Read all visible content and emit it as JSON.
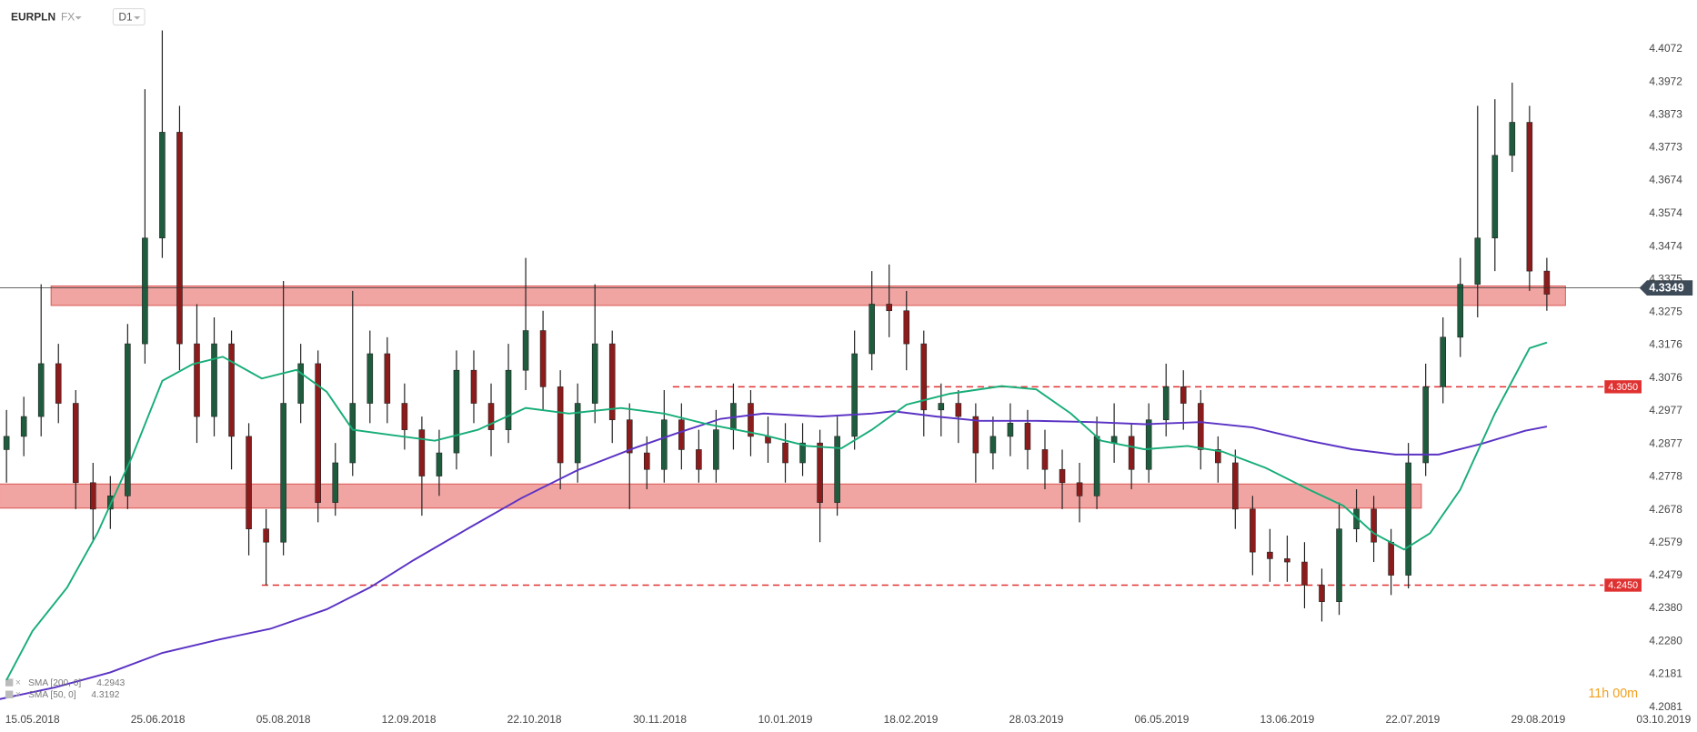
{
  "header": {
    "symbol": "EURPLN",
    "market": "FX",
    "interval": "D1",
    "countdown": "11h 00m"
  },
  "chart_data": {
    "type": "candlestick",
    "xlim": [
      -7.5,
      371
    ],
    "xticks": [
      {
        "value": 0,
        "label": "15.05.2018"
      },
      {
        "value": 29,
        "label": "25.06.2018"
      },
      {
        "value": 58,
        "label": "05.08.2018"
      },
      {
        "value": 87,
        "label": "12.09.2018"
      },
      {
        "value": 116,
        "label": "22.10.2018"
      },
      {
        "value": 145,
        "label": "30.11.2018"
      },
      {
        "value": 174,
        "label": "10.01.2019"
      },
      {
        "value": 203,
        "label": "18.02.2019"
      },
      {
        "value": 232,
        "label": "28.03.2019"
      },
      {
        "value": 261,
        "label": "06.05.2019"
      },
      {
        "value": 290,
        "label": "13.06.2019"
      },
      {
        "value": 319,
        "label": "22.07.2019"
      },
      {
        "value": 348,
        "label": "29.08.2019"
      },
      {
        "value": 377,
        "label": "03.10.2019"
      }
    ],
    "ylim": [
      4.2065,
      4.422
    ],
    "yticks": [
      4.4072,
      4.3972,
      4.3873,
      4.3773,
      4.3674,
      4.3574,
      4.3474,
      4.3375,
      4.3275,
      4.3176,
      4.3076,
      4.2977,
      4.2877,
      4.2778,
      4.2678,
      4.2579,
      4.2479,
      {
        "value": 4.238,
        "label": "4.2380"
      },
      {
        "value": 4.228,
        "label": "4.2280"
      },
      4.2181,
      4.2081
    ],
    "up_color": "#1f5c3e",
    "down_color": "#8c1c1c",
    "x": [
      -6,
      -2,
      2,
      6,
      10,
      14,
      18,
      22,
      26,
      30,
      34,
      38,
      42,
      46,
      50,
      54,
      58,
      62,
      66,
      70,
      74,
      78,
      82,
      86,
      90,
      94,
      98,
      102,
      106,
      110,
      114,
      118,
      122,
      126,
      130,
      134,
      138,
      142,
      146,
      150,
      154,
      158,
      162,
      166,
      170,
      174,
      178,
      182,
      186,
      190,
      194,
      198,
      202,
      206,
      210,
      214,
      218,
      222,
      226,
      230,
      234,
      238,
      242,
      246,
      250,
      254,
      258,
      262,
      266,
      270,
      274,
      278,
      282,
      286,
      290,
      294,
      298,
      302,
      306,
      310,
      314,
      318,
      322,
      326,
      330,
      334,
      338,
      342,
      346,
      350
    ],
    "open": [
      4.286,
      4.29,
      4.296,
      4.312,
      4.3,
      4.276,
      4.268,
      4.272,
      4.318,
      4.35,
      4.382,
      4.318,
      4.296,
      4.318,
      4.29,
      4.262,
      4.258,
      4.3,
      4.312,
      4.27,
      4.282,
      4.3,
      4.315,
      4.3,
      4.292,
      4.278,
      4.285,
      4.31,
      4.3,
      4.292,
      4.31,
      4.322,
      4.305,
      4.282,
      4.3,
      4.318,
      4.295,
      4.285,
      4.28,
      4.295,
      4.286,
      4.28,
      4.292,
      4.3,
      4.29,
      4.288,
      4.282,
      4.288,
      4.27,
      4.29,
      4.315,
      4.33,
      4.328,
      4.318,
      4.298,
      4.3,
      4.296,
      4.285,
      4.29,
      4.294,
      4.286,
      4.28,
      4.276,
      4.272,
      4.288,
      4.29,
      4.28,
      4.295,
      4.305,
      4.3,
      4.286,
      4.282,
      4.268,
      4.255,
      4.253,
      4.252,
      4.245,
      4.24,
      4.262,
      4.268,
      4.258,
      4.248,
      4.282,
      4.305,
      4.32,
      4.336,
      4.35,
      4.375,
      4.385,
      4.34
    ],
    "high": [
      4.298,
      4.302,
      4.336,
      4.318,
      4.304,
      4.282,
      4.278,
      4.324,
      4.395,
      4.4128,
      4.39,
      4.33,
      4.326,
      4.322,
      4.294,
      4.268,
      4.337,
      4.318,
      4.316,
      4.288,
      4.334,
      4.322,
      4.32,
      4.306,
      4.296,
      4.292,
      4.316,
      4.316,
      4.306,
      4.318,
      4.344,
      4.328,
      4.31,
      4.306,
      4.336,
      4.322,
      4.3,
      4.29,
      4.304,
      4.3,
      4.292,
      4.298,
      4.306,
      4.304,
      4.296,
      4.294,
      4.294,
      4.292,
      4.296,
      4.322,
      4.34,
      4.342,
      4.334,
      4.322,
      4.306,
      4.304,
      4.3,
      4.296,
      4.3,
      4.298,
      4.292,
      4.286,
      4.282,
      4.296,
      4.3,
      4.294,
      4.3,
      4.312,
      4.31,
      4.304,
      4.29,
      4.286,
      4.272,
      4.262,
      4.26,
      4.258,
      4.25,
      4.27,
      4.274,
      4.272,
      4.262,
      4.288,
      4.312,
      4.326,
      4.344,
      4.39,
      4.392,
      4.397,
      4.39,
      4.344
    ],
    "low": [
      4.276,
      4.284,
      4.29,
      4.294,
      4.268,
      4.258,
      4.262,
      4.268,
      4.312,
      4.344,
      4.31,
      4.288,
      4.29,
      4.28,
      4.254,
      4.245,
      4.254,
      4.294,
      4.264,
      4.266,
      4.278,
      4.294,
      4.294,
      4.286,
      4.266,
      4.272,
      4.28,
      4.294,
      4.284,
      4.288,
      4.304,
      4.298,
      4.274,
      4.276,
      4.294,
      4.288,
      4.268,
      4.274,
      4.276,
      4.28,
      4.276,
      4.276,
      4.286,
      4.284,
      4.282,
      4.276,
      4.278,
      4.258,
      4.266,
      4.286,
      4.31,
      4.32,
      4.31,
      4.29,
      4.29,
      4.288,
      4.276,
      4.28,
      4.284,
      4.28,
      4.274,
      4.268,
      4.264,
      4.268,
      4.282,
      4.274,
      4.276,
      4.29,
      4.292,
      4.28,
      4.276,
      4.262,
      4.248,
      4.246,
      4.246,
      4.238,
      4.234,
      4.236,
      4.258,
      4.252,
      4.242,
      4.244,
      4.278,
      4.3,
      4.314,
      4.326,
      4.34,
      4.37,
      4.334,
      4.328
    ],
    "close": [
      4.29,
      4.296,
      4.312,
      4.3,
      4.276,
      4.268,
      4.272,
      4.318,
      4.35,
      4.382,
      4.318,
      4.296,
      4.318,
      4.29,
      4.262,
      4.258,
      4.3,
      4.312,
      4.27,
      4.282,
      4.3,
      4.315,
      4.3,
      4.292,
      4.278,
      4.285,
      4.31,
      4.3,
      4.292,
      4.31,
      4.322,
      4.305,
      4.282,
      4.3,
      4.318,
      4.295,
      4.285,
      4.28,
      4.295,
      4.286,
      4.28,
      4.292,
      4.3,
      4.29,
      4.288,
      4.282,
      4.288,
      4.27,
      4.29,
      4.315,
      4.33,
      4.328,
      4.318,
      4.298,
      4.3,
      4.296,
      4.285,
      4.29,
      4.294,
      4.286,
      4.28,
      4.276,
      4.272,
      4.29,
      4.29,
      4.28,
      4.295,
      4.305,
      4.3,
      4.286,
      4.282,
      4.268,
      4.255,
      4.253,
      4.252,
      4.245,
      4.24,
      4.262,
      4.268,
      4.258,
      4.248,
      4.282,
      4.305,
      4.32,
      4.336,
      4.35,
      4.375,
      4.385,
      4.34,
      4.333
    ],
    "series": [
      {
        "name": "SMA [200, 0]",
        "legend_value": 4.2943,
        "color": "#5a32c4",
        "x": [
          -8,
          5,
          18,
          30,
          43,
          55,
          68,
          78,
          88,
          101,
          113,
          126,
          139,
          149,
          159,
          169,
          182,
          194,
          199,
          209,
          219,
          232,
          245,
          257,
          270,
          282,
          295,
          305,
          315,
          325,
          335,
          345,
          350
        ],
        "values": [
          4.2104,
          4.214,
          4.2186,
          4.2245,
          4.2285,
          4.2318,
          4.2377,
          4.2443,
          4.2525,
          4.2624,
          4.2713,
          4.2798,
          4.2864,
          4.291,
          4.2953,
          4.2969,
          4.296,
          4.2969,
          4.2976,
          4.296,
          4.2947,
          4.2947,
          4.2943,
          4.2937,
          4.2943,
          4.2927,
          4.2887,
          4.2861,
          4.2845,
          4.2845,
          4.2878,
          4.2917,
          4.293
        ]
      },
      {
        "name": "SMA [50, 0]",
        "legend_value": 4.3192,
        "color": "#17ad78",
        "x": [
          -6,
          0,
          8,
          15,
          23,
          30,
          37,
          44,
          53,
          61,
          68,
          74,
          83,
          93,
          103,
          114,
          124,
          136,
          146,
          156,
          169,
          179,
          187,
          194,
          202,
          212,
          224,
          232,
          240,
          247,
          257,
          267,
          275,
          285,
          295,
          303,
          310,
          317,
          323,
          330,
          338,
          346,
          350
        ],
        "values": [
          4.2163,
          4.2311,
          4.2443,
          4.2607,
          4.2838,
          4.3068,
          4.3118,
          4.3141,
          4.3075,
          4.3101,
          4.3035,
          4.292,
          4.2904,
          4.2887,
          4.292,
          4.2986,
          4.2969,
          4.2986,
          4.2969,
          4.2937,
          4.2904,
          4.2871,
          4.2864,
          4.292,
          4.2996,
          4.3029,
          4.3052,
          4.3042,
          4.2969,
          4.2887,
          4.2861,
          4.2871,
          4.2854,
          4.2805,
          4.2739,
          4.269,
          4.2607,
          4.2558,
          4.2607,
          4.2739,
          4.2969,
          4.3167,
          4.3184
        ]
      }
    ],
    "zones": [
      {
        "from": 4.3,
        "to": 354.3,
        "low": 4.3296,
        "high": 4.3355,
        "color": "#ee8f8b"
      },
      {
        "from": -7.6,
        "to": 321,
        "low": 4.2683,
        "high": 4.2756,
        "color": "#ee8f8b"
      }
    ],
    "levels": [
      {
        "from": 148,
        "value": 4.305,
        "label": "4.3050",
        "color": "#e03131"
      },
      {
        "from": 53,
        "value": 4.245,
        "label": "4.2450",
        "color": "#e03131"
      }
    ],
    "last_price": 4.3349
  }
}
